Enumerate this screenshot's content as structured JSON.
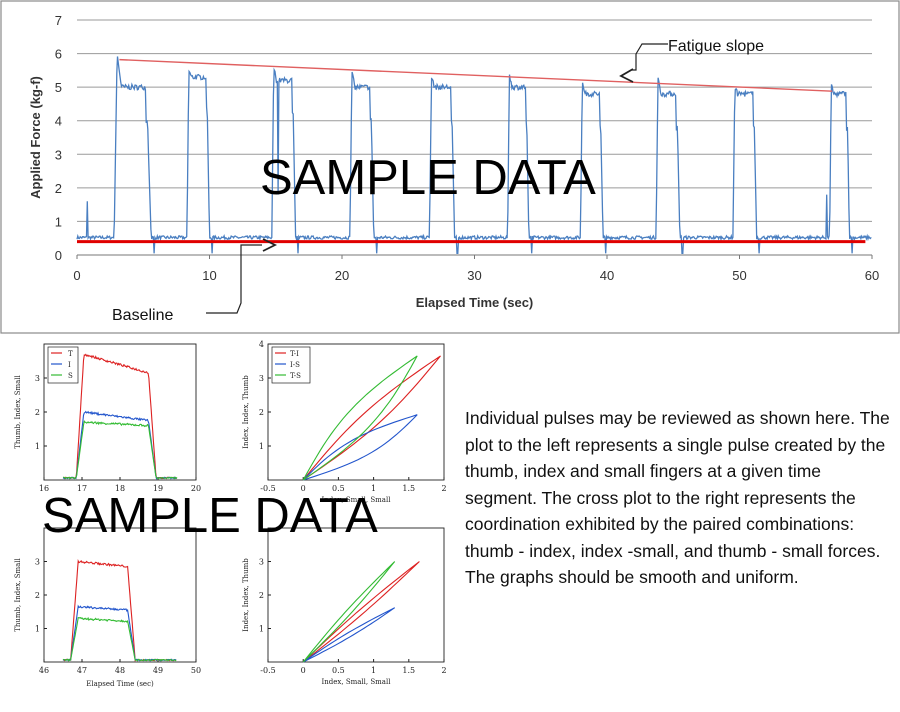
{
  "chart_data": [
    {
      "id": "fatigue",
      "type": "line",
      "xlabel": "Elapsed Time (sec)",
      "ylabel": "Applied Force (kg-f)",
      "xlim": [
        0,
        60
      ],
      "ylim": [
        0,
        7
      ],
      "xticks": [
        0,
        10,
        20,
        30,
        40,
        50,
        60
      ],
      "yticks": [
        0,
        1,
        2,
        3,
        4,
        5,
        6,
        7
      ],
      "grid": "horizontal",
      "baseline": 0.4,
      "spikes": [
        {
          "x": 0.8,
          "y": 1.6
        },
        {
          "x": 15.2,
          "y": 1.8
        },
        {
          "x": 56.6,
          "y": 1.8
        }
      ],
      "pulses": [
        {
          "start": 2.8,
          "end": 5.6,
          "peak": 6.0,
          "plateau": 5.0
        },
        {
          "start": 8.3,
          "end": 10.0,
          "peak": 5.5,
          "plateau": 5.3
        },
        {
          "start": 14.7,
          "end": 16.5,
          "peak": 5.6,
          "plateau": 5.2
        },
        {
          "start": 20.6,
          "end": 22.4,
          "peak": 5.5,
          "plateau": 5.0
        },
        {
          "start": 26.6,
          "end": 28.5,
          "peak": 5.3,
          "plateau": 5.0
        },
        {
          "start": 32.5,
          "end": 34.1,
          "peak": 5.4,
          "plateau": 5.0
        },
        {
          "start": 38.0,
          "end": 39.7,
          "peak": 5.2,
          "plateau": 4.8
        },
        {
          "start": 43.7,
          "end": 45.5,
          "peak": 5.3,
          "plateau": 4.8
        },
        {
          "start": 49.5,
          "end": 51.3,
          "peak": 5.0,
          "plateau": 4.8
        },
        {
          "start": 56.8,
          "end": 58.3,
          "peak": 5.1,
          "plateau": 4.8
        }
      ],
      "fatigue_slope": {
        "x": [
          3.2,
          57.0
        ],
        "y": [
          5.82,
          4.88
        ]
      },
      "annotations": {
        "fatigue": "Fatigue slope",
        "baseline": "Baseline"
      }
    },
    {
      "id": "pulse-a",
      "type": "line",
      "xlabel": "",
      "ylabel": "Thumb, Index, Small",
      "xlim": [
        16,
        20
      ],
      "ylim": [
        0,
        4
      ],
      "xticks": [
        16,
        17,
        18,
        19,
        20
      ],
      "yticks": [
        1,
        2,
        3
      ],
      "pulse": {
        "start": 17.05,
        "end": 18.75
      },
      "series": [
        {
          "name": "T",
          "color": "#dd2222",
          "peak": 3.7,
          "end": 3.15
        },
        {
          "name": "I",
          "color": "#2255cc",
          "peak": 2.0,
          "end": 1.75
        },
        {
          "name": "S",
          "color": "#33bb33",
          "peak": 1.7,
          "end": 1.6
        }
      ]
    },
    {
      "id": "cross-a",
      "type": "scatter",
      "xlabel": "Index, Small, Small",
      "ylabel": "Index, Index, Thumb",
      "xlim": [
        -0.5,
        2
      ],
      "ylim": [
        0,
        4
      ],
      "xticks": [
        -0.5,
        0,
        0.5,
        1,
        1.5,
        2
      ],
      "yticks": [
        1,
        2,
        3,
        4
      ],
      "series": [
        {
          "name": "T-I",
          "color": "#dd2222",
          "end": [
            1.95,
            3.65
          ],
          "spread": 0.07
        },
        {
          "name": "I-S",
          "color": "#2255cc",
          "end": [
            1.62,
            1.92
          ],
          "spread": 0.09
        },
        {
          "name": "T-S",
          "color": "#33bb33",
          "end": [
            1.62,
            3.65
          ],
          "spread": 0.1
        }
      ]
    },
    {
      "id": "pulse-b",
      "type": "line",
      "xlabel": "Elapsed Time (sec)",
      "ylabel": "Thumb, Index, Small",
      "xlim": [
        46,
        50
      ],
      "ylim": [
        0,
        4
      ],
      "xticks": [
        46,
        47,
        48,
        49,
        50
      ],
      "yticks": [
        1,
        2,
        3
      ],
      "pulse": {
        "start": 46.9,
        "end": 48.2
      },
      "series": [
        {
          "name": "T",
          "color": "#dd2222",
          "peak": 3.0,
          "end": 2.85
        },
        {
          "name": "I",
          "color": "#2255cc",
          "peak": 1.65,
          "end": 1.55
        },
        {
          "name": "S",
          "color": "#33bb33",
          "peak": 1.3,
          "end": 1.22
        }
      ]
    },
    {
      "id": "cross-b",
      "type": "scatter",
      "xlabel": "Index, Small, Small",
      "ylabel": "Index, Index, Thumb",
      "xlim": [
        -0.5,
        2
      ],
      "ylim": [
        0,
        4
      ],
      "xticks": [
        -0.5,
        0,
        0.5,
        1,
        1.5,
        2
      ],
      "yticks": [
        1,
        2,
        3,
        4
      ],
      "series": [
        {
          "name": "T-I",
          "color": "#dd2222",
          "end": [
            1.65,
            3.0
          ],
          "spread": 0.02
        },
        {
          "name": "I-S",
          "color": "#2255cc",
          "end": [
            1.3,
            1.62
          ],
          "spread": 0.02
        },
        {
          "name": "T-S",
          "color": "#33bb33",
          "end": [
            1.3,
            3.0
          ],
          "spread": 0.02
        }
      ]
    }
  ],
  "description": "Individual pulses may be reviewed as shown here. The plot to the left represents a single pulse created by the thumb, index and small fingers at a given time segment. The cross plot to the right represents the coordination exhibited by the paired combinations: thumb - index, index -small, and thumb - small forces. The graphs should be smooth and uniform.",
  "watermark": "SAMPLE DATA",
  "colors": {
    "trace": "#4a7fc1",
    "slope": "#e06060",
    "baseline": "#e00000"
  }
}
